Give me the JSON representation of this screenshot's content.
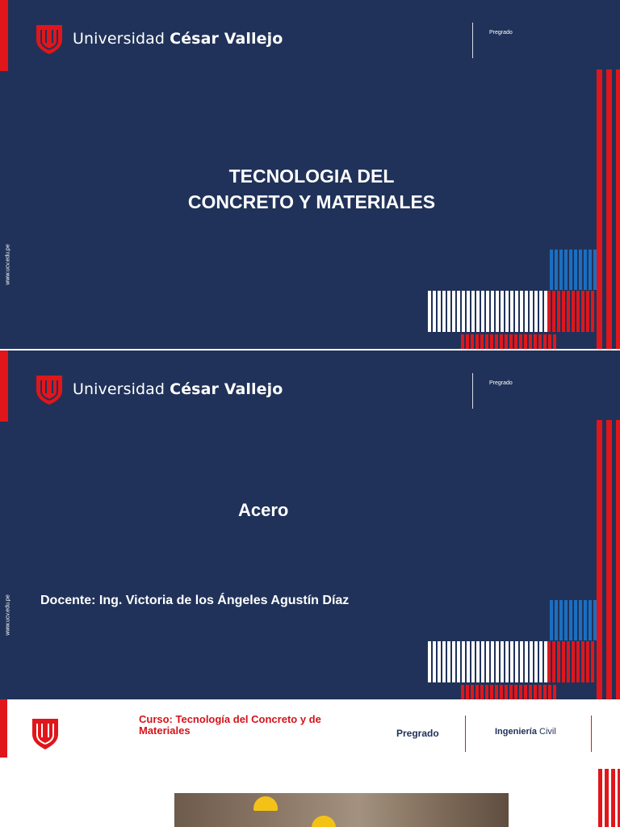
{
  "slides": [
    {
      "brand_prefix": "Universidad",
      "brand_name": "César Vallejo",
      "level": "Pregrado",
      "url": "www.ucv.edu.pe",
      "title_line1": "TECNOLOGIA DEL",
      "title_line2": "CONCRETO Y MATERIALES"
    },
    {
      "brand_prefix": "Universidad",
      "brand_name": "César Vallejo",
      "level": "Pregrado",
      "url": "www.ucv.edu.pe",
      "title": "Acero",
      "docente": "Docente: Ing. Victoria de los Ángeles Agustín Díaz"
    },
    {
      "curso": "Curso: Tecnología del Concreto y de Materiales",
      "level": "Pregrado",
      "program_prefix": "Ingeniería",
      "program_suffix": "Civil"
    }
  ],
  "colors": {
    "navy": "#203259",
    "red": "#e0161b",
    "blue": "#1b6fc0",
    "white": "#ffffff"
  },
  "icons": [
    "ucv-shield-logo"
  ]
}
